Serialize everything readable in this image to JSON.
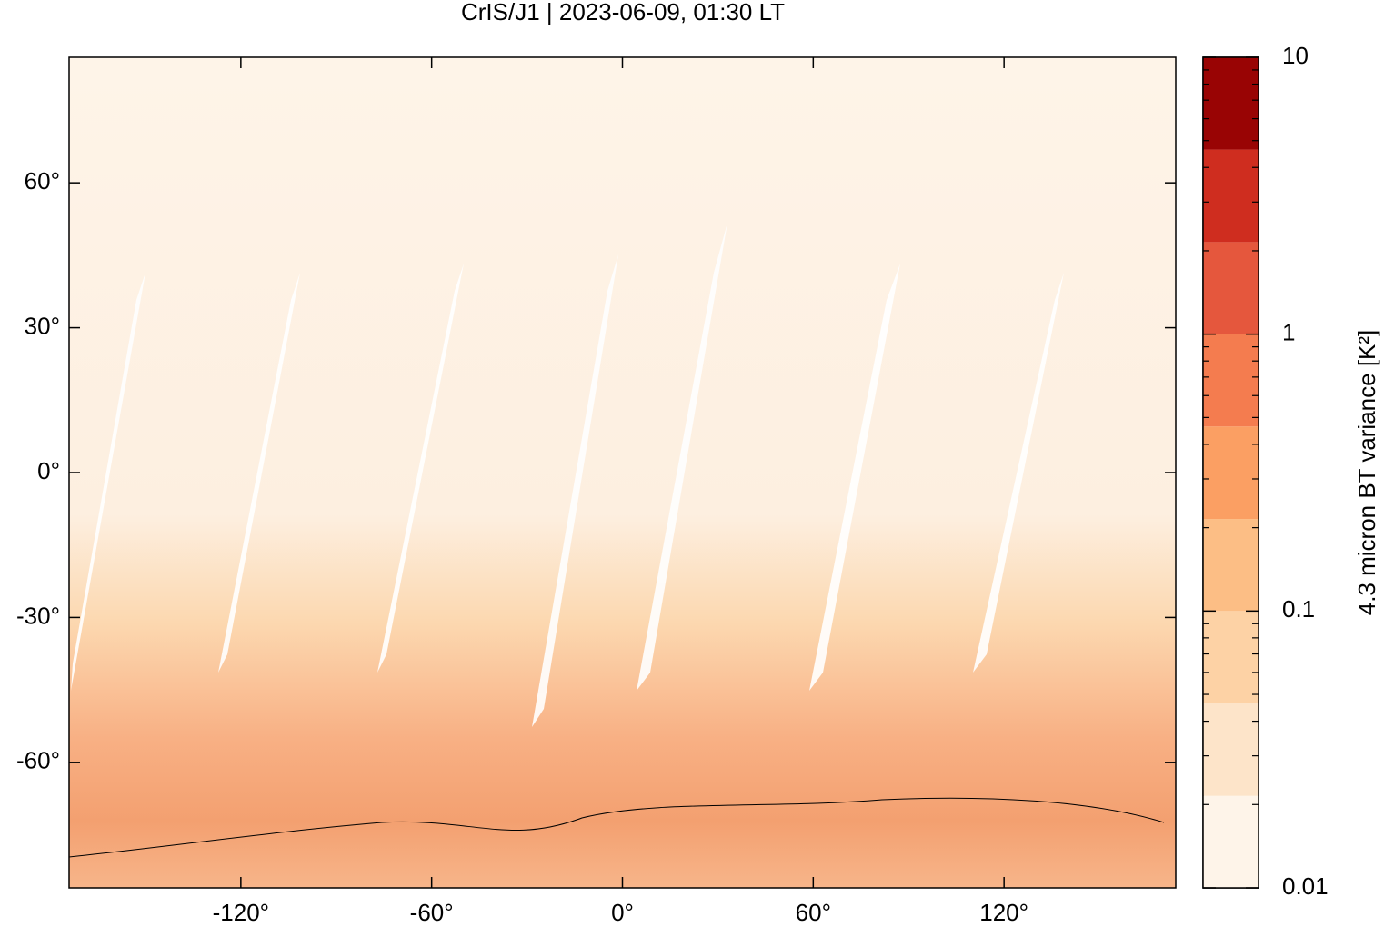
{
  "chart_data": {
    "type": "map",
    "title": "CrIS/J1 | 2023-06-09, 01:30 LT",
    "xlim": [
      -174,
      174
    ],
    "ylim": [
      -86,
      86
    ],
    "xticks": [
      {
        "value": -120,
        "label": "-120°"
      },
      {
        "value": -60,
        "label": "-60°"
      },
      {
        "value": 0,
        "label": "0°"
      },
      {
        "value": 60,
        "label": "60°"
      },
      {
        "value": 120,
        "label": "120°"
      }
    ],
    "yticks": [
      {
        "value": -60,
        "label": "-60°"
      },
      {
        "value": -30,
        "label": "-30°"
      },
      {
        "value": 0,
        "label": "0°"
      },
      {
        "value": 30,
        "label": "30°"
      },
      {
        "value": 60,
        "label": "60°"
      }
    ],
    "colorbar": {
      "label": "4.3 micron BT variance [K²]",
      "scale": "log",
      "lim": [
        0.01,
        10
      ],
      "ticks": [
        0.01,
        0.1,
        1,
        10
      ],
      "minor_ticks": [
        0.02,
        0.03,
        0.04,
        0.05,
        0.06,
        0.07,
        0.08,
        0.09,
        0.2,
        0.3,
        0.4,
        0.5,
        0.6,
        0.7,
        0.8,
        0.9,
        2,
        3,
        4,
        5,
        6,
        7,
        8,
        9
      ],
      "levels": [
        0.01,
        0.0215,
        0.0464,
        0.1,
        0.215,
        0.464,
        1,
        2.15,
        4.64,
        10
      ],
      "colors": [
        "#fef4e9",
        "#fde4c9",
        "#fdd2a5",
        "#fcbe85",
        "#fb9f63",
        "#f47c4f",
        "#e5573d",
        "#cf2d1f",
        "#990404"
      ]
    }
  }
}
